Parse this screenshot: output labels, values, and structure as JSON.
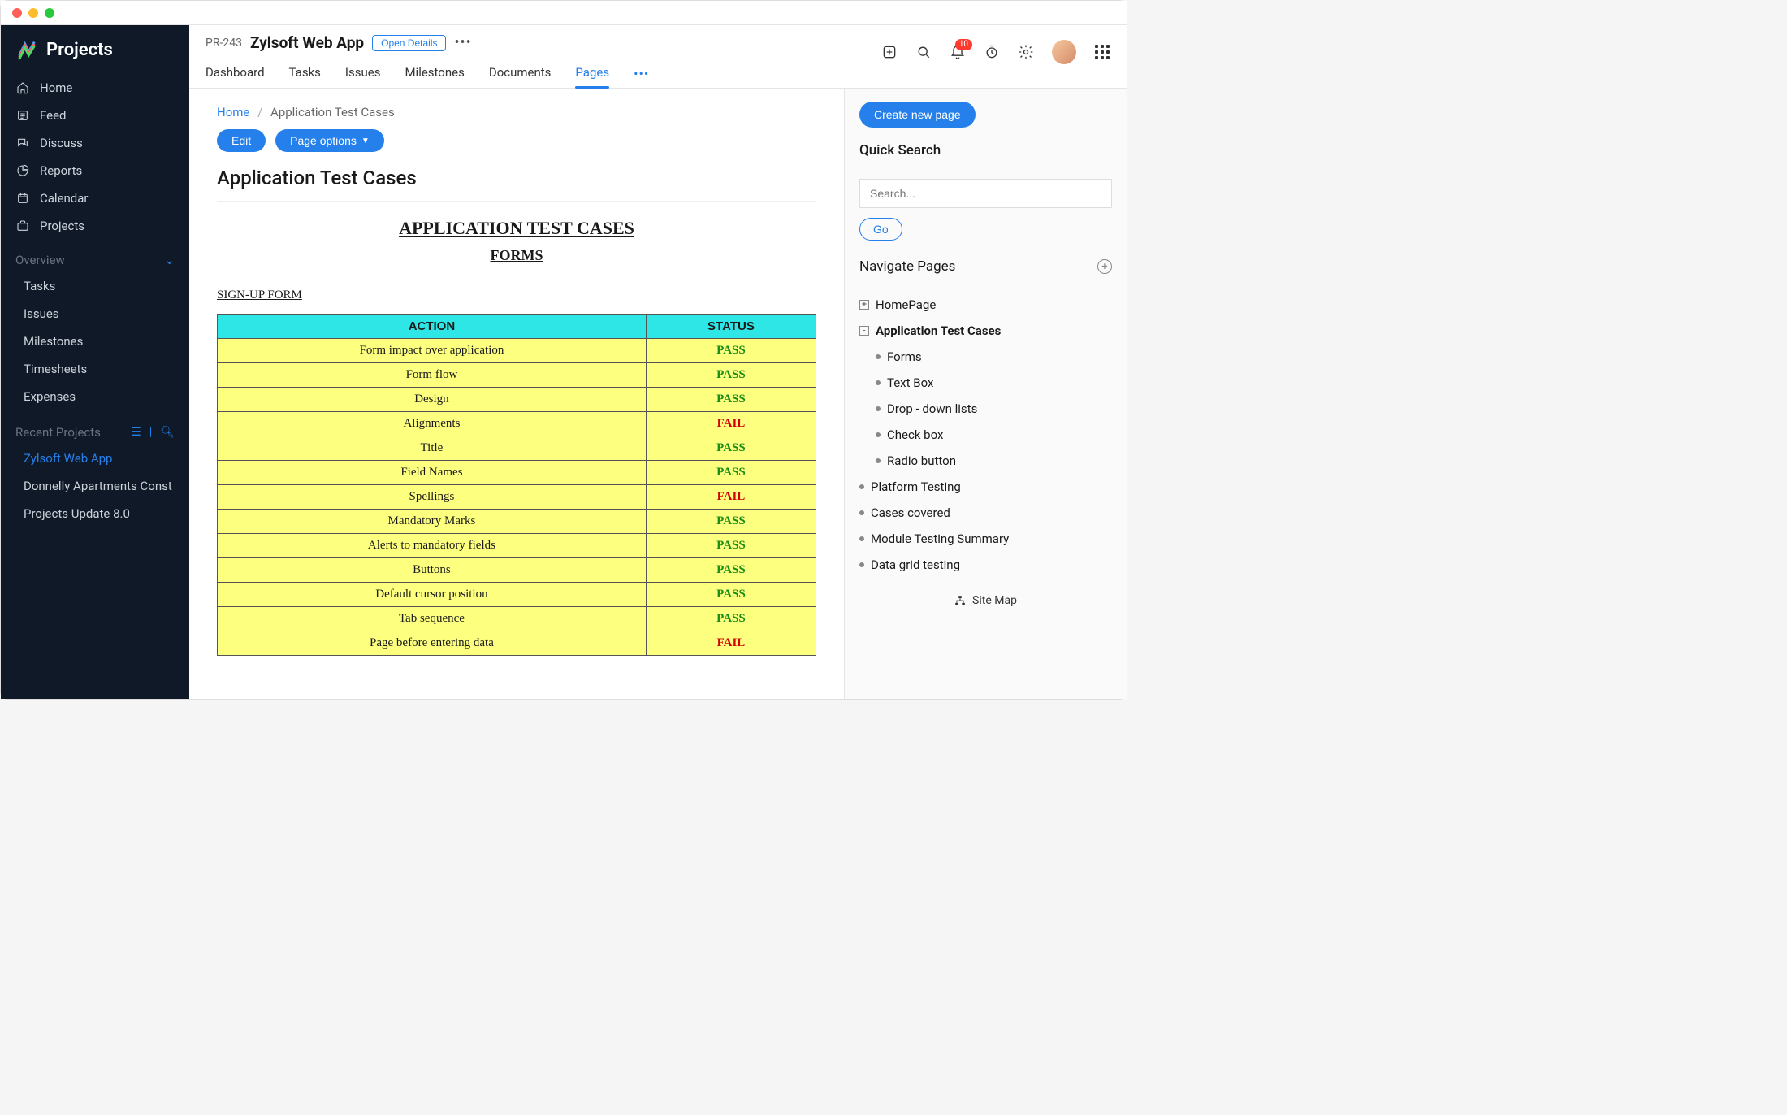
{
  "brand": "Projects",
  "sidebar": {
    "items": [
      {
        "label": "Home",
        "icon": "home"
      },
      {
        "label": "Feed",
        "icon": "feed"
      },
      {
        "label": "Discuss",
        "icon": "discuss"
      },
      {
        "label": "Reports",
        "icon": "reports"
      },
      {
        "label": "Calendar",
        "icon": "calendar"
      },
      {
        "label": "Projects",
        "icon": "projects"
      }
    ],
    "overview_label": "Overview",
    "overview": [
      {
        "label": "Tasks"
      },
      {
        "label": "Issues"
      },
      {
        "label": "Milestones"
      },
      {
        "label": "Timesheets"
      },
      {
        "label": "Expenses"
      }
    ],
    "recent_label": "Recent Projects",
    "recent": [
      {
        "label": "Zylsoft Web App",
        "active": true
      },
      {
        "label": "Donnelly Apartments Const"
      },
      {
        "label": "Projects Update 8.0"
      }
    ]
  },
  "header": {
    "project_id": "PR-243",
    "project_name": "Zylsoft Web App",
    "open_details": "Open Details",
    "tabs": [
      "Dashboard",
      "Tasks",
      "Issues",
      "Milestones",
      "Documents",
      "Pages"
    ],
    "active_tab": "Pages",
    "notif_count": "10"
  },
  "breadcrumb": {
    "home": "Home",
    "current": "Application Test Cases"
  },
  "actions": {
    "edit": "Edit",
    "page_options": "Page options"
  },
  "page_title": "Application Test Cases",
  "doc": {
    "title": "APPLICATION TEST CASES",
    "subtitle": "FORMS",
    "section": "SIGN-UP FORM",
    "columns": [
      "ACTION",
      "STATUS"
    ],
    "header_bg": "#2ee6e6",
    "row_bg": "#fdff7f",
    "pass_color": "#1a8c1a",
    "fail_color": "#d40000",
    "rows": [
      {
        "action": "Form impact over application",
        "status": "PASS"
      },
      {
        "action": "Form flow",
        "status": "PASS"
      },
      {
        "action": "Design",
        "status": "PASS"
      },
      {
        "action": "Alignments",
        "status": "FAIL"
      },
      {
        "action": "Title",
        "status": "PASS"
      },
      {
        "action": "Field Names",
        "status": "PASS"
      },
      {
        "action": "Spellings",
        "status": "FAIL"
      },
      {
        "action": "Mandatory Marks",
        "status": "PASS"
      },
      {
        "action": "Alerts to mandatory fields",
        "status": "PASS"
      },
      {
        "action": "Buttons",
        "status": "PASS"
      },
      {
        "action": "Default cursor position",
        "status": "PASS"
      },
      {
        "action": "Tab sequence",
        "status": "PASS"
      },
      {
        "action": "Page before entering data",
        "status": "FAIL"
      }
    ]
  },
  "rail": {
    "create": "Create new page",
    "quick_search": "Quick Search",
    "search_placeholder": "Search...",
    "go": "Go",
    "navigate": "Navigate Pages",
    "sitemap": "Site Map",
    "tree": [
      {
        "label": "HomePage",
        "toggle": "+",
        "level": 1
      },
      {
        "label": "Application Test Cases",
        "toggle": "-",
        "level": 1,
        "bold": true
      },
      {
        "label": "Forms",
        "bullet": true,
        "level": 2
      },
      {
        "label": "Text Box",
        "bullet": true,
        "level": 2
      },
      {
        "label": "Drop - down lists",
        "bullet": true,
        "level": 2
      },
      {
        "label": "Check box",
        "bullet": true,
        "level": 2
      },
      {
        "label": "Radio button",
        "bullet": true,
        "level": 2
      },
      {
        "label": "Platform Testing",
        "bullet": true,
        "level": 1
      },
      {
        "label": "Cases covered",
        "bullet": true,
        "level": 1
      },
      {
        "label": "Module Testing Summary",
        "bullet": true,
        "level": 1
      },
      {
        "label": "Data grid testing",
        "bullet": true,
        "level": 1
      }
    ]
  },
  "colors": {
    "accent": "#2680eb",
    "sidebar_bg": "#0f1927"
  }
}
